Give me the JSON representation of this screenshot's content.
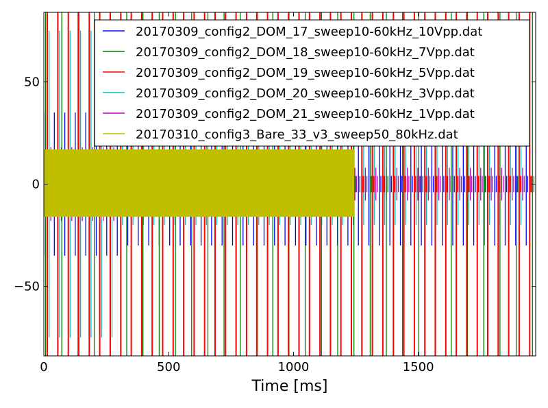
{
  "chart_data": {
    "type": "line",
    "title": "",
    "xlabel": "Time [ms]",
    "ylabel": "",
    "xlim": [
      0,
      1970
    ],
    "ylim": [
      -84,
      84
    ],
    "x_ticks": [
      0,
      500,
      1000,
      1500
    ],
    "x_tick_labels": [
      "0",
      "500",
      "1000",
      "1500"
    ],
    "y_ticks": [
      50,
      0,
      -50
    ],
    "y_tick_labels": [
      "50",
      "0",
      "−50"
    ],
    "grid": false,
    "legend_position": "top-right",
    "series": [
      {
        "name": "20170309_config2_DOM_17_sweep10-60kHz_10Vpp.dat",
        "color": "#0000ff",
        "kind": "pulse-train",
        "burst_amplitude": 35,
        "steady_amplitude": 30,
        "pulse_period_ms": 42,
        "start_ms": 0,
        "end_ms": 1952
      },
      {
        "name": "20170309_config2_DOM_18_sweep10-60kHz_7Vpp.dat",
        "color": "#008000",
        "kind": "pulse-train",
        "burst_amplitude": 84,
        "steady_amplitude": 84,
        "pulse_period_ms": 65,
        "start_ms": 0,
        "end_ms": 1970
      },
      {
        "name": "20170309_config2_DOM_19_sweep10-60kHz_5Vpp.dat",
        "color": "#ff0000",
        "kind": "pulse-train",
        "burst_amplitude": 84,
        "steady_amplitude": 84,
        "pulse_period_ms": 42,
        "start_ms": 0,
        "end_ms": 1960
      },
      {
        "name": "20170309_config2_DOM_20_sweep10-60kHz_3Vpp.dat",
        "color": "#00bfbf",
        "kind": "pulse-train",
        "burst_amplitude": 75,
        "steady_amplitude": 20,
        "pulse_period_ms": 42,
        "start_ms": 0,
        "end_ms": 1952
      },
      {
        "name": "20170309_config2_DOM_21_sweep10-60kHz_1Vpp.dat",
        "color": "#bf00bf",
        "kind": "pulse-train",
        "burst_amplitude": 18,
        "steady_amplitude": 8,
        "pulse_period_ms": 42,
        "start_ms": 0,
        "end_ms": 1952
      },
      {
        "name": "20170310_config3_Bare_33_v3_sweep50_80kHz.dat",
        "color": "#bfbf00",
        "kind": "dense-band",
        "upper": 17,
        "lower": -16,
        "start_ms": 0,
        "end_ms": 1243
      }
    ]
  }
}
